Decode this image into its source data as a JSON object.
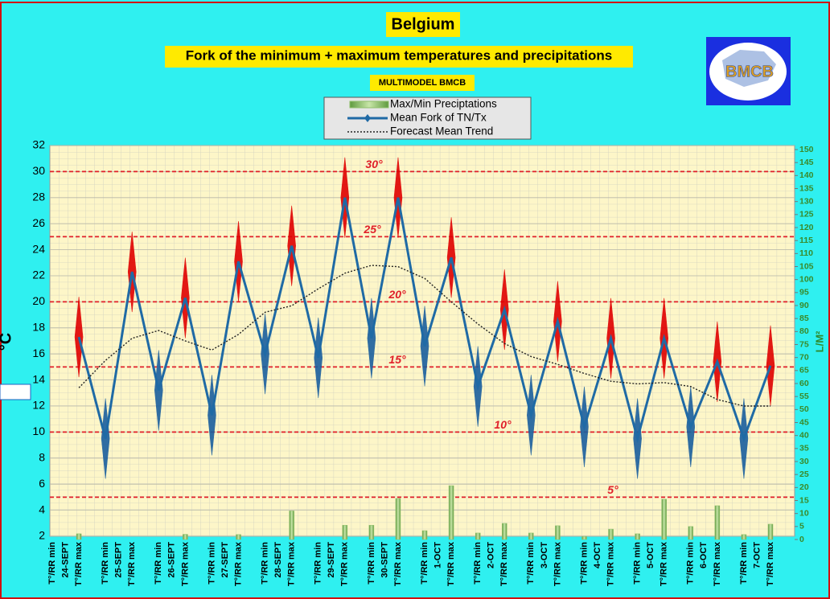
{
  "chart_data": {
    "type": "line",
    "title": "Belgium",
    "subtitle": "Fork of the minimum + maximum temperatures and precipitations",
    "source_label": "MULTIMODEL BMCB",
    "logo_text": "BMCB",
    "y_label": "°C",
    "y2_label": "L/M²",
    "categories": [
      "T°/RR min",
      "T°/RR max",
      "T°/RR min",
      "T°/RR max",
      "T°/RR min",
      "T°/RR max",
      "T°/RR min",
      "T°/RR max",
      "T°/RR min",
      "T°/RR max",
      "T°/RR min",
      "T°/RR max",
      "T°/RR min",
      "T°/RR max",
      "T°/RR min",
      "T°/RR max",
      "T°/RR min",
      "T°/RR max",
      "T°/RR min",
      "T°/RR max",
      "T°/RR min",
      "T°/RR max",
      "T°/RR min",
      "T°/RR max",
      "T°/RR min",
      "T°/RR max",
      "T°/RR min",
      "T°/RR max"
    ],
    "dates": [
      "24-SEPT",
      "25-SEPT",
      "26-SEPT",
      "27-SEPT",
      "28-SEPT",
      "29-SEPT",
      "30-SEPT",
      "1-OCT",
      "2-OCT",
      "3-OCT",
      "4-OCT",
      "5-OCT",
      "6-OCT",
      "7-OCT"
    ],
    "ylim": [
      2,
      32
    ],
    "yticks": [
      2,
      4,
      6,
      8,
      10,
      12,
      14,
      16,
      18,
      20,
      22,
      24,
      26,
      28,
      30,
      32
    ],
    "y2lim": [
      0,
      150
    ],
    "y2ticks": [
      0,
      5,
      10,
      15,
      20,
      25,
      30,
      35,
      40,
      45,
      50,
      55,
      60,
      65,
      70,
      75,
      80,
      85,
      90,
      95,
      100,
      105,
      110,
      115,
      120,
      125,
      130,
      135,
      140,
      145,
      150
    ],
    "grid": true,
    "fork_colors": [
      "#1a5f9e",
      "#e00000"
    ],
    "series": [
      {
        "name": "Max/Min Preciptations",
        "type": "bar",
        "axis": "y2",
        "color": "#8fbf6a",
        "values": [
          null,
          2.2,
          null,
          null,
          null,
          2,
          null,
          1.9,
          null,
          11,
          null,
          5.5,
          5.5,
          15.8,
          3.4,
          20.7,
          2.5,
          6.2,
          2.5,
          5.3,
          1.2,
          4,
          2.2,
          15.5,
          5,
          13,
          1.9,
          5.9
        ]
      },
      {
        "name": "Mean Fork of TN/Tx",
        "type": "line",
        "color": "#1f6aa5",
        "values": [
          null,
          17.3,
          9.5,
          22.3,
          13.2,
          20.3,
          11.3,
          23.1,
          16,
          24.3,
          15.7,
          28,
          17.2,
          28,
          16.6,
          23.4,
          13.5,
          19.4,
          11.3,
          18.5,
          10.4,
          17.2,
          9.5,
          17.2,
          10.4,
          15.4,
          9.5,
          15.1
        ]
      },
      {
        "name": "Forecast Mean Trend",
        "type": "line",
        "color": "#222222",
        "values": [
          null,
          13.4,
          15.5,
          17.2,
          17.8,
          17,
          16.3,
          17.5,
          19.2,
          19.7,
          21,
          22.2,
          22.8,
          22.7,
          21.8,
          20,
          18.3,
          16.8,
          15.8,
          15.2,
          14.5,
          13.9,
          13.7,
          13.8,
          13.5,
          12.5,
          12,
          12
        ]
      }
    ],
    "reference_lines": [
      {
        "value": 30,
        "label": "30°"
      },
      {
        "value": 25,
        "label": "25°"
      },
      {
        "value": 20,
        "label": "20°"
      },
      {
        "value": 15,
        "label": "15°"
      },
      {
        "value": 10,
        "label": "10°"
      },
      {
        "value": 5,
        "label": "5°"
      }
    ],
    "reference_color": "#e0202a"
  }
}
